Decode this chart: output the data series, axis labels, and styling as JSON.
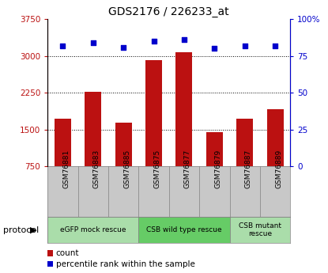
{
  "title": "GDS2176 / 226233_at",
  "samples": [
    "GSM76881",
    "GSM76883",
    "GSM76885",
    "GSM76875",
    "GSM76877",
    "GSM76879",
    "GSM76887",
    "GSM76889"
  ],
  "counts": [
    1720,
    2270,
    1650,
    2920,
    3080,
    1450,
    1720,
    1920
  ],
  "percentiles": [
    82,
    84,
    81,
    85,
    86,
    80,
    82,
    82
  ],
  "ylim_left": [
    750,
    3750
  ],
  "ylim_right": [
    0,
    100
  ],
  "yticks_left": [
    750,
    1500,
    2250,
    3000,
    3750
  ],
  "yticks_right": [
    0,
    25,
    50,
    75,
    100
  ],
  "ytick_labels_right": [
    "0",
    "25",
    "50",
    "75",
    "100%"
  ],
  "bar_color": "#bb1111",
  "dot_color": "#0000cc",
  "hgrid_at": [
    1500,
    2250,
    3000
  ],
  "protocol_groups": [
    {
      "label": "eGFP mock rescue",
      "start": 0,
      "end": 3,
      "color": "#aaddaa"
    },
    {
      "label": "CSB wild type rescue",
      "start": 3,
      "end": 6,
      "color": "#66cc66"
    },
    {
      "label": "CSB mutant\nrescue",
      "start": 6,
      "end": 8,
      "color": "#aaddaa"
    }
  ],
  "legend_items": [
    {
      "label": "count",
      "color": "#bb1111"
    },
    {
      "label": "percentile rank within the sample",
      "color": "#0000cc"
    }
  ],
  "protocol_label": "protocol",
  "label_bg": "#c8c8c8",
  "title_fontsize": 10
}
